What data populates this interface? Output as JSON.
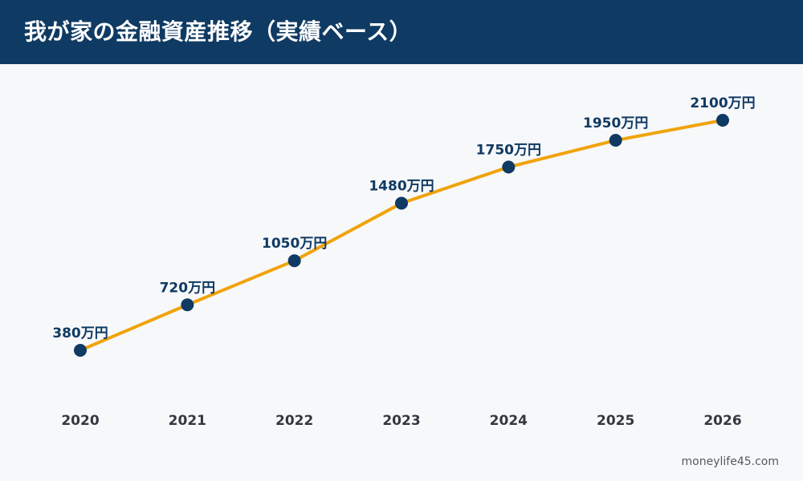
{
  "header": {
    "title": "我が家の金融資産推移（実績ベース）",
    "background": "#0f3a63"
  },
  "chart_data": {
    "type": "line",
    "title": "我が家の金融資産推移（実績ベース）",
    "categories": [
      "2020",
      "2021",
      "2022",
      "2023",
      "2024",
      "2025",
      "2026"
    ],
    "values": [
      380,
      720,
      1050,
      1480,
      1750,
      1950,
      2100
    ],
    "data_labels": [
      "380万円",
      "720万円",
      "1050万円",
      "1480万円",
      "1750万円",
      "1950万円",
      "2100万円"
    ],
    "ylim": [
      170,
      2130
    ],
    "grid": false,
    "legend": "none",
    "line_color": "#f0a30a",
    "marker_color": "#0f3a63",
    "label_color": "#0f3a63"
  },
  "footer": {
    "credit": "moneylife45.com"
  }
}
